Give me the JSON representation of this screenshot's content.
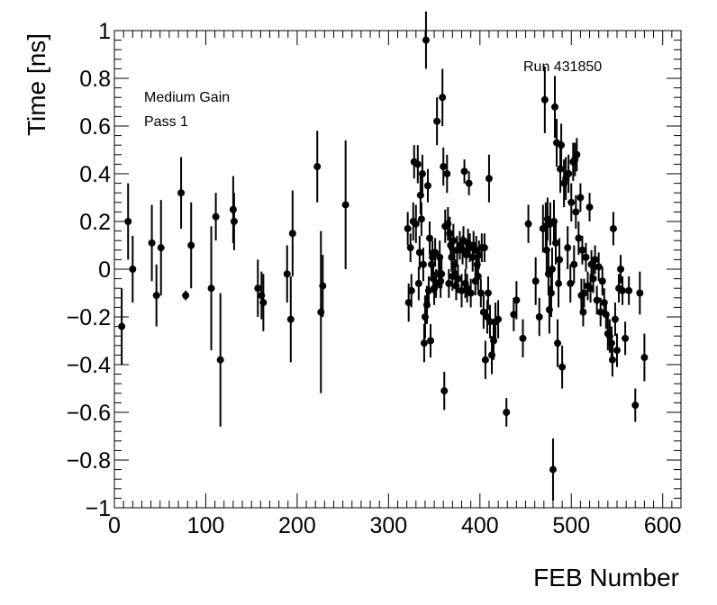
{
  "chart_data": {
    "type": "scatter",
    "title": "",
    "xlabel": "FEB Number",
    "ylabel": "Time [ns]",
    "xlim": [
      0,
      620
    ],
    "ylim": [
      -1,
      1
    ],
    "x_ticks": [
      0,
      100,
      200,
      300,
      400,
      500,
      600
    ],
    "y_ticks": [
      -1,
      -0.8,
      -0.6,
      -0.4,
      -0.2,
      0,
      0.2,
      0.4,
      0.6,
      0.8,
      1
    ],
    "x_tick_labels": [
      "0",
      "100",
      "200",
      "300",
      "400",
      "500",
      "600"
    ],
    "y_tick_labels": [
      "−1",
      "−0.8",
      "−0.6",
      "−0.4",
      "−0.2",
      "0",
      "0.2",
      "0.4",
      "0.6",
      "0.8",
      "1"
    ],
    "annotations": [
      "Medium Gain",
      "Pass 1",
      "Run 431850"
    ],
    "grid": false,
    "marker_color": "#000000",
    "points": [
      {
        "x": 8,
        "y": -0.24,
        "err": 0.16
      },
      {
        "x": 15,
        "y": 0.2,
        "err": 0.16
      },
      {
        "x": 20,
        "y": 0.0,
        "err": 0.14
      },
      {
        "x": 41,
        "y": 0.11,
        "err": 0.16
      },
      {
        "x": 46,
        "y": -0.11,
        "err": 0.13
      },
      {
        "x": 51,
        "y": 0.09,
        "err": 0.2
      },
      {
        "x": 73,
        "y": 0.32,
        "err": 0.15
      },
      {
        "x": 78,
        "y": -0.11,
        "err": 0.02
      },
      {
        "x": 84,
        "y": 0.1,
        "err": 0.18
      },
      {
        "x": 106,
        "y": -0.08,
        "err": 0.26
      },
      {
        "x": 111,
        "y": 0.22,
        "err": 0.1
      },
      {
        "x": 116,
        "y": -0.38,
        "err": 0.28
      },
      {
        "x": 130,
        "y": 0.25,
        "err": 0.14
      },
      {
        "x": 131,
        "y": 0.2,
        "err": 0.12
      },
      {
        "x": 157,
        "y": -0.08,
        "err": 0.12
      },
      {
        "x": 161,
        "y": -0.11,
        "err": 0.1
      },
      {
        "x": 163,
        "y": -0.14,
        "err": 0.12
      },
      {
        "x": 189,
        "y": -0.02,
        "err": 0.12
      },
      {
        "x": 193,
        "y": -0.21,
        "err": 0.18
      },
      {
        "x": 195,
        "y": 0.15,
        "err": 0.18
      },
      {
        "x": 222,
        "y": 0.43,
        "err": 0.15
      },
      {
        "x": 226,
        "y": -0.18,
        "err": 0.34
      },
      {
        "x": 228,
        "y": -0.07,
        "err": 0.13
      },
      {
        "x": 253,
        "y": 0.27,
        "err": 0.27
      },
      {
        "x": 321,
        "y": 0.17,
        "err": 0.07
      },
      {
        "x": 322,
        "y": -0.14,
        "err": 0.08
      },
      {
        "x": 324,
        "y": 0.09,
        "err": 0.06
      },
      {
        "x": 325,
        "y": -0.09,
        "err": 0.07
      },
      {
        "x": 327,
        "y": 0.2,
        "err": 0.08
      },
      {
        "x": 328,
        "y": 0.45,
        "err": 0.07
      },
      {
        "x": 330,
        "y": 0.19,
        "err": 0.08
      },
      {
        "x": 332,
        "y": 0.44,
        "err": 0.08
      },
      {
        "x": 333,
        "y": -0.06,
        "err": 0.07
      },
      {
        "x": 334,
        "y": 0.07,
        "err": 0.07
      },
      {
        "x": 335,
        "y": 0.31,
        "err": 0.08
      },
      {
        "x": 336,
        "y": 0.21,
        "err": 0.07
      },
      {
        "x": 337,
        "y": 0.4,
        "err": 0.08
      },
      {
        "x": 338,
        "y": 0.02,
        "err": 0.07
      },
      {
        "x": 339,
        "y": -0.31,
        "err": 0.08
      },
      {
        "x": 340,
        "y": -0.2,
        "err": 0.09
      },
      {
        "x": 341,
        "y": 0.96,
        "err": 0.12
      },
      {
        "x": 342,
        "y": -0.15,
        "err": 0.08
      },
      {
        "x": 343,
        "y": 0.35,
        "err": 0.07
      },
      {
        "x": 344,
        "y": -0.09,
        "err": 0.06
      },
      {
        "x": 345,
        "y": 0.13,
        "err": 0.07
      },
      {
        "x": 346,
        "y": -0.3,
        "err": 0.07
      },
      {
        "x": 347,
        "y": 0.02,
        "err": 0.06
      },
      {
        "x": 348,
        "y": 0.05,
        "err": 0.07
      },
      {
        "x": 349,
        "y": -0.04,
        "err": 0.06
      },
      {
        "x": 350,
        "y": -0.08,
        "err": 0.07
      },
      {
        "x": 351,
        "y": 0.07,
        "err": 0.06
      },
      {
        "x": 352,
        "y": -0.06,
        "err": 0.06
      },
      {
        "x": 353,
        "y": 0.62,
        "err": 0.1
      },
      {
        "x": 355,
        "y": -0.02,
        "err": 0.06
      },
      {
        "x": 356,
        "y": 0.05,
        "err": 0.07
      },
      {
        "x": 357,
        "y": -0.05,
        "err": 0.07
      },
      {
        "x": 358,
        "y": -0.02,
        "err": 0.06
      },
      {
        "x": 359,
        "y": 0.72,
        "err": 0.12
      },
      {
        "x": 360,
        "y": 0.43,
        "err": 0.08
      },
      {
        "x": 361,
        "y": -0.51,
        "err": 0.08
      },
      {
        "x": 362,
        "y": 0.18,
        "err": 0.07
      },
      {
        "x": 364,
        "y": 0.4,
        "err": 0.08
      },
      {
        "x": 365,
        "y": 0.19,
        "err": 0.07
      },
      {
        "x": 366,
        "y": -0.06,
        "err": 0.06
      },
      {
        "x": 367,
        "y": 0.15,
        "err": 0.07
      },
      {
        "x": 368,
        "y": 0.1,
        "err": 0.06
      },
      {
        "x": 369,
        "y": 0.05,
        "err": 0.06
      },
      {
        "x": 370,
        "y": -0.03,
        "err": 0.06
      },
      {
        "x": 371,
        "y": 0.12,
        "err": 0.07
      },
      {
        "x": 372,
        "y": 0.02,
        "err": 0.06
      },
      {
        "x": 373,
        "y": -0.02,
        "err": 0.06
      },
      {
        "x": 374,
        "y": -0.07,
        "err": 0.06
      },
      {
        "x": 375,
        "y": 0.08,
        "err": 0.06
      },
      {
        "x": 376,
        "y": -0.04,
        "err": 0.06
      },
      {
        "x": 378,
        "y": 0.1,
        "err": 0.06
      },
      {
        "x": 380,
        "y": -0.09,
        "err": 0.07
      },
      {
        "x": 381,
        "y": 0.08,
        "err": 0.06
      },
      {
        "x": 382,
        "y": 0.12,
        "err": 0.06
      },
      {
        "x": 383,
        "y": 0.41,
        "err": 0.05
      },
      {
        "x": 384,
        "y": -0.06,
        "err": 0.06
      },
      {
        "x": 385,
        "y": 0.06,
        "err": 0.06
      },
      {
        "x": 386,
        "y": -0.08,
        "err": 0.06
      },
      {
        "x": 387,
        "y": 0.11,
        "err": 0.06
      },
      {
        "x": 388,
        "y": 0.36,
        "err": 0.05
      },
      {
        "x": 389,
        "y": 0.09,
        "err": 0.06
      },
      {
        "x": 390,
        "y": -0.1,
        "err": 0.06
      },
      {
        "x": 392,
        "y": 0.05,
        "err": 0.06
      },
      {
        "x": 393,
        "y": 0.1,
        "err": 0.06
      },
      {
        "x": 395,
        "y": -0.05,
        "err": 0.06
      },
      {
        "x": 396,
        "y": 0.08,
        "err": 0.06
      },
      {
        "x": 397,
        "y": 0.02,
        "err": 0.06
      },
      {
        "x": 398,
        "y": -0.03,
        "err": 0.06
      },
      {
        "x": 399,
        "y": 0.06,
        "err": 0.06
      },
      {
        "x": 401,
        "y": -0.1,
        "err": 0.06
      },
      {
        "x": 402,
        "y": 0.09,
        "err": 0.06
      },
      {
        "x": 404,
        "y": -0.18,
        "err": 0.07
      },
      {
        "x": 405,
        "y": 0.09,
        "err": 0.06
      },
      {
        "x": 406,
        "y": -0.38,
        "err": 0.08
      },
      {
        "x": 408,
        "y": -0.2,
        "err": 0.07
      },
      {
        "x": 409,
        "y": -0.1,
        "err": 0.07
      },
      {
        "x": 410,
        "y": 0.38,
        "err": 0.1
      },
      {
        "x": 411,
        "y": -0.22,
        "err": 0.07
      },
      {
        "x": 413,
        "y": -0.36,
        "err": 0.08
      },
      {
        "x": 415,
        "y": -0.3,
        "err": 0.08
      },
      {
        "x": 417,
        "y": -0.22,
        "err": 0.08
      },
      {
        "x": 420,
        "y": -0.21,
        "err": 0.08
      },
      {
        "x": 429,
        "y": -0.6,
        "err": 0.06
      },
      {
        "x": 437,
        "y": -0.19,
        "err": 0.07
      },
      {
        "x": 440,
        "y": -0.13,
        "err": 0.08
      },
      {
        "x": 447,
        "y": -0.29,
        "err": 0.08
      },
      {
        "x": 453,
        "y": 0.19,
        "err": 0.08
      },
      {
        "x": 461,
        "y": -0.05,
        "err": 0.1
      },
      {
        "x": 465,
        "y": -0.2,
        "err": 0.08
      },
      {
        "x": 469,
        "y": 0.17,
        "err": 0.1
      },
      {
        "x": 471,
        "y": 0.71,
        "err": 0.14
      },
      {
        "x": 472,
        "y": 0.18,
        "err": 0.1
      },
      {
        "x": 473,
        "y": 0.08,
        "err": 0.1
      },
      {
        "x": 474,
        "y": 0.21,
        "err": 0.09
      },
      {
        "x": 475,
        "y": -0.02,
        "err": 0.09
      },
      {
        "x": 476,
        "y": -0.17,
        "err": 0.1
      },
      {
        "x": 477,
        "y": 0.19,
        "err": 0.09
      },
      {
        "x": 478,
        "y": -0.1,
        "err": 0.1
      },
      {
        "x": 479,
        "y": 0.0,
        "err": 0.09
      },
      {
        "x": 480,
        "y": -0.84,
        "err": 0.13
      },
      {
        "x": 481,
        "y": 0.2,
        "err": 0.09
      },
      {
        "x": 482,
        "y": 0.68,
        "err": 0.13
      },
      {
        "x": 483,
        "y": 0.11,
        "err": 0.09
      },
      {
        "x": 484,
        "y": 0.53,
        "err": 0.1
      },
      {
        "x": 485,
        "y": -0.31,
        "err": 0.1
      },
      {
        "x": 486,
        "y": -0.06,
        "err": 0.1
      },
      {
        "x": 487,
        "y": 0.04,
        "err": 0.09
      },
      {
        "x": 488,
        "y": 0.42,
        "err": 0.1
      },
      {
        "x": 489,
        "y": 0.52,
        "err": 0.09
      },
      {
        "x": 490,
        "y": -0.41,
        "err": 0.09
      },
      {
        "x": 492,
        "y": 0.36,
        "err": 0.1
      },
      {
        "x": 494,
        "y": 0.38,
        "err": 0.09
      },
      {
        "x": 496,
        "y": 0.09,
        "err": 0.09
      },
      {
        "x": 497,
        "y": 0.4,
        "err": 0.08
      },
      {
        "x": 499,
        "y": -0.06,
        "err": 0.08
      },
      {
        "x": 500,
        "y": 0.28,
        "err": 0.08
      },
      {
        "x": 502,
        "y": 0.45,
        "err": 0.08
      },
      {
        "x": 503,
        "y": 0.02,
        "err": 0.08
      },
      {
        "x": 504,
        "y": 0.46,
        "err": 0.07
      },
      {
        "x": 505,
        "y": 0.24,
        "err": 0.07
      },
      {
        "x": 506,
        "y": 0.48,
        "err": 0.07
      },
      {
        "x": 508,
        "y": 0.13,
        "err": 0.07
      },
      {
        "x": 510,
        "y": 0.3,
        "err": 0.06
      },
      {
        "x": 511,
        "y": -0.11,
        "err": 0.07
      },
      {
        "x": 512,
        "y": 0.08,
        "err": 0.06
      },
      {
        "x": 513,
        "y": -0.18,
        "err": 0.06
      },
      {
        "x": 514,
        "y": -0.1,
        "err": 0.06
      },
      {
        "x": 516,
        "y": 0.05,
        "err": 0.06
      },
      {
        "x": 518,
        "y": -0.07,
        "err": 0.06
      },
      {
        "x": 520,
        "y": 0.26,
        "err": 0.06
      },
      {
        "x": 521,
        "y": -0.08,
        "err": 0.06
      },
      {
        "x": 522,
        "y": 0.02,
        "err": 0.06
      },
      {
        "x": 524,
        "y": -0.04,
        "err": 0.06
      },
      {
        "x": 526,
        "y": 0.04,
        "err": 0.06
      },
      {
        "x": 528,
        "y": -0.13,
        "err": 0.06
      },
      {
        "x": 530,
        "y": 0.01,
        "err": 0.06
      },
      {
        "x": 532,
        "y": -0.18,
        "err": 0.06
      },
      {
        "x": 534,
        "y": -0.05,
        "err": 0.06
      },
      {
        "x": 536,
        "y": -0.14,
        "err": 0.06
      },
      {
        "x": 538,
        "y": -0.19,
        "err": 0.06
      },
      {
        "x": 540,
        "y": -0.27,
        "err": 0.07
      },
      {
        "x": 542,
        "y": -0.28,
        "err": 0.07
      },
      {
        "x": 544,
        "y": -0.31,
        "err": 0.07
      },
      {
        "x": 545,
        "y": -0.38,
        "err": 0.07
      },
      {
        "x": 546,
        "y": 0.17,
        "err": 0.07
      },
      {
        "x": 548,
        "y": -0.21,
        "err": 0.07
      },
      {
        "x": 550,
        "y": -0.34,
        "err": 0.07
      },
      {
        "x": 552,
        "y": -0.08,
        "err": 0.06
      },
      {
        "x": 554,
        "y": 0.0,
        "err": 0.06
      },
      {
        "x": 556,
        "y": -0.09,
        "err": 0.06
      },
      {
        "x": 559,
        "y": -0.29,
        "err": 0.07
      },
      {
        "x": 563,
        "y": -0.09,
        "err": 0.06
      },
      {
        "x": 570,
        "y": -0.57,
        "err": 0.07
      },
      {
        "x": 575,
        "y": -0.1,
        "err": 0.09
      },
      {
        "x": 580,
        "y": -0.37,
        "err": 0.1
      }
    ]
  }
}
